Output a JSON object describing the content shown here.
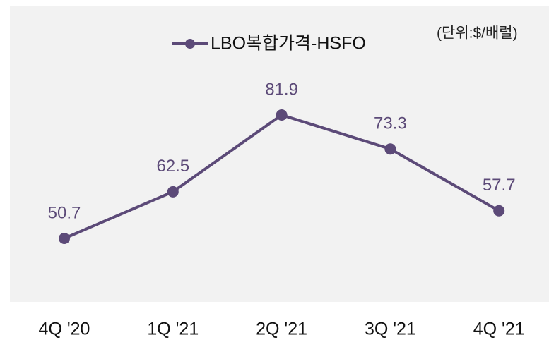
{
  "chart_data": {
    "type": "line",
    "unit_note": "(단위:$/배럴)",
    "categories": [
      "4Q '20",
      "1Q '21",
      "2Q '21",
      "3Q '21",
      "4Q '21"
    ],
    "series": [
      {
        "name": "LBO복합가격-HSFO",
        "color": "#5c4a78",
        "values": [
          50.7,
          62.5,
          81.9,
          73.3,
          57.7
        ]
      }
    ],
    "legend": "top"
  }
}
